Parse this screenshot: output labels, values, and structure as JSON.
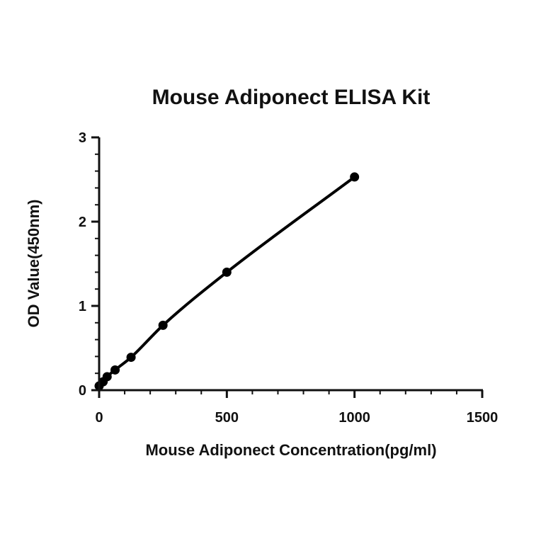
{
  "chart_data": {
    "type": "scatter",
    "title": "Mouse Adiponect ELISA Kit",
    "xlabel": "Mouse Adiponect Concentration(pg/ml)",
    "ylabel": "OD Value(450nm)",
    "xlim": [
      0,
      1500
    ],
    "ylim": [
      0,
      3
    ],
    "x_ticks": [
      0,
      500,
      1000,
      1500
    ],
    "y_ticks": [
      0,
      1,
      2,
      3
    ],
    "x_minor_step": 100,
    "y_minor_step": 0.2,
    "grid": false,
    "legend": "none",
    "curve": "fitted",
    "series": [
      {
        "x": [
          0,
          15.6,
          31.25,
          62.5,
          125,
          250,
          500,
          1000
        ],
        "y": [
          0.05,
          0.1,
          0.16,
          0.24,
          0.39,
          0.77,
          1.4,
          2.53
        ]
      }
    ],
    "colors": {
      "marks": "#000000",
      "axes": "#111111"
    }
  }
}
